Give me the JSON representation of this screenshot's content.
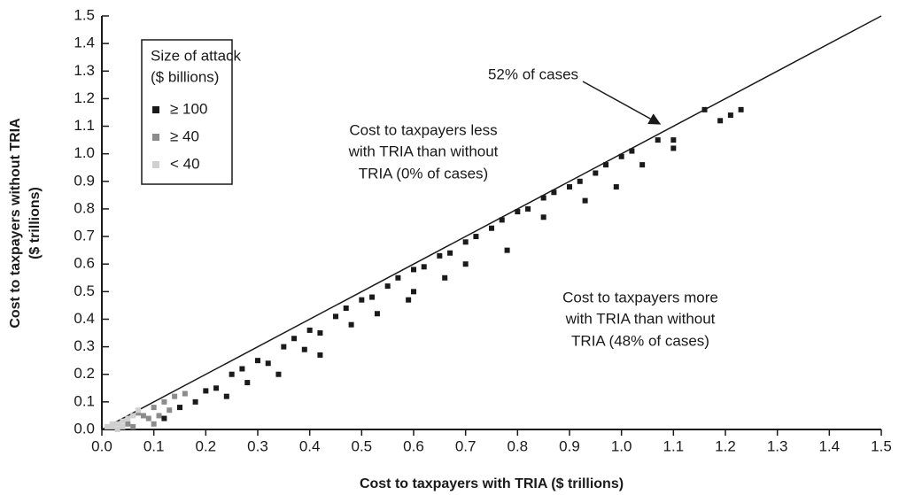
{
  "chart_data": {
    "type": "scatter",
    "xlabel": "Cost to taxpayers with TRIA ($ trillions)",
    "ylabel": [
      "Cost to taxpayers without TRIA",
      "($ trillions)"
    ],
    "xlim": [
      0,
      1.5
    ],
    "ylim": [
      0,
      1.5
    ],
    "xticks": [
      {
        "value": 0,
        "label": "0.0"
      },
      0.1,
      0.2,
      0.3,
      0.4,
      0.5,
      0.6,
      0.7,
      0.8,
      0.9,
      {
        "value": 1,
        "label": "1.0"
      },
      1.1,
      1.2,
      1.3,
      1.4,
      1.5
    ],
    "yticks": [
      {
        "value": 0,
        "label": "0.0"
      },
      0.1,
      0.2,
      0.3,
      0.4,
      0.5,
      0.6,
      0.7,
      0.8,
      0.9,
      {
        "value": 1,
        "label": "1.0"
      },
      1.1,
      1.2,
      1.3,
      1.4,
      1.5
    ],
    "legend_title": [
      "Size of attack",
      "($ billions)"
    ],
    "legend": "upper left",
    "annotations": [
      {
        "lines": [
          "52% of cases"
        ]
      },
      {
        "lines": [
          "Cost to taxpayers less",
          "with TRIA than without",
          "TRIA (0% of cases)"
        ]
      },
      {
        "lines": [
          "Cost to taxpayers more",
          "with TRIA than without",
          "TRIA (48% of cases)"
        ]
      }
    ],
    "series": [
      {
        "name": "≥ 100",
        "color": "#1a1a1a",
        "x": [
          0.12,
          0.15,
          0.18,
          0.2,
          0.22,
          0.25,
          0.27,
          0.3,
          0.32,
          0.35,
          0.37,
          0.4,
          0.42,
          0.45,
          0.47,
          0.5,
          0.52,
          0.55,
          0.57,
          0.6,
          0.62,
          0.65,
          0.67,
          0.7,
          0.72,
          0.75,
          0.77,
          0.8,
          0.82,
          0.85,
          0.87,
          0.9,
          0.92,
          0.95,
          0.97,
          1.0,
          1.02,
          1.04,
          1.07,
          1.1,
          1.1,
          1.16,
          1.19,
          1.21,
          1.23,
          0.6,
          0.59,
          0.53,
          0.39,
          0.42,
          0.78,
          0.85,
          0.93,
          0.99,
          0.66,
          0.34,
          0.28,
          0.24,
          0.7,
          0.48
        ],
        "values": [
          0.04,
          0.08,
          0.1,
          0.14,
          0.15,
          0.2,
          0.22,
          0.25,
          0.24,
          0.3,
          0.33,
          0.36,
          0.35,
          0.41,
          0.44,
          0.47,
          0.48,
          0.52,
          0.55,
          0.58,
          0.59,
          0.63,
          0.64,
          0.68,
          0.7,
          0.73,
          0.76,
          0.79,
          0.8,
          0.84,
          0.86,
          0.88,
          0.9,
          0.93,
          0.96,
          0.99,
          1.01,
          0.96,
          1.05,
          1.05,
          1.02,
          1.16,
          1.12,
          1.14,
          1.16,
          0.5,
          0.47,
          0.42,
          0.29,
          0.27,
          0.65,
          0.77,
          0.83,
          0.88,
          0.55,
          0.2,
          0.17,
          0.12,
          0.6,
          0.38
        ]
      },
      {
        "name": "≥ 40",
        "color": "#8c8c8c",
        "x": [
          0.05,
          0.08,
          0.1,
          0.12,
          0.14,
          0.07,
          0.09,
          0.11,
          0.13,
          0.06,
          0.16,
          0.1
        ],
        "values": [
          0.02,
          0.05,
          0.08,
          0.1,
          0.12,
          0.06,
          0.04,
          0.05,
          0.07,
          0.01,
          0.13,
          0.02
        ]
      },
      {
        "name": "< 40",
        "color": "#d0d0d0",
        "x": [
          0.01,
          0.02,
          0.03,
          0.04,
          0.05,
          0.06,
          0.03,
          0.02,
          0.07,
          0.04
        ],
        "values": [
          0.01,
          0.01,
          0.02,
          0.03,
          0.04,
          0.05,
          0,
          0.02,
          0.07,
          0.01
        ]
      }
    ]
  }
}
